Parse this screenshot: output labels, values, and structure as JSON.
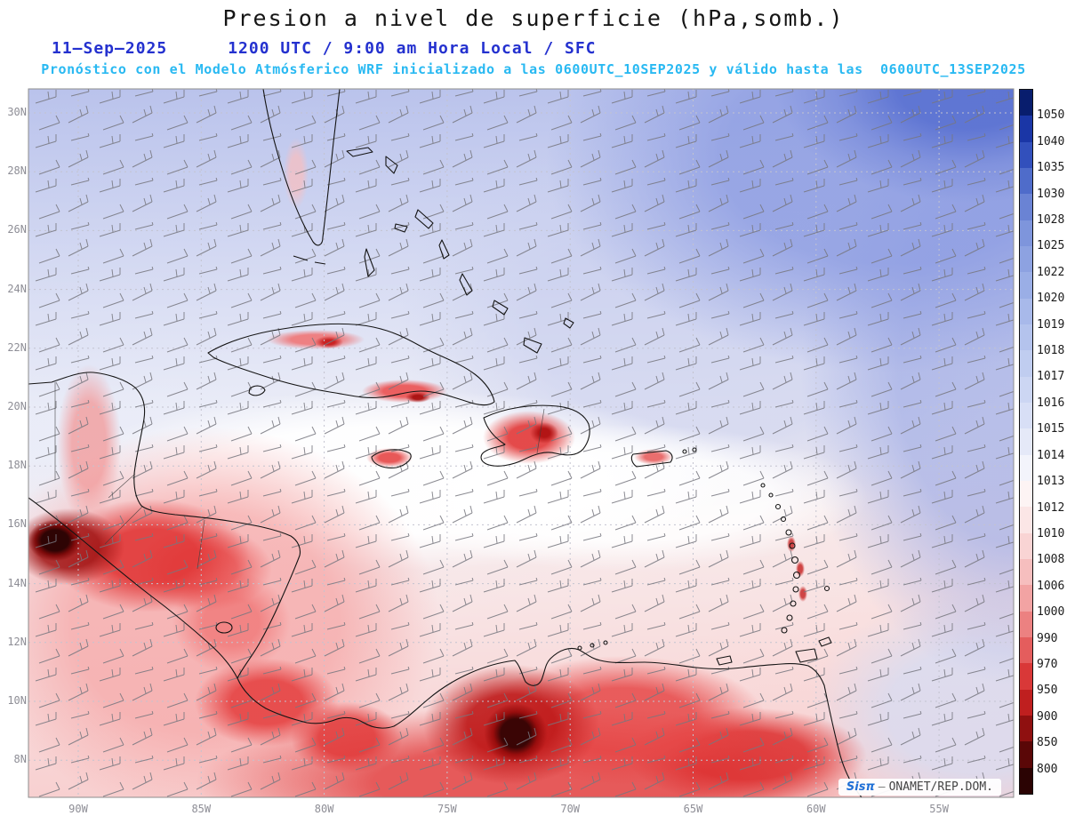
{
  "header": {
    "title": "Presion a nivel de superficie (hPa,somb.)",
    "date": "11–Sep–2025",
    "time_line": "1200 UTC / 9:00 am Hora Local / SFC",
    "forecast_line": "Pronóstico con el Modelo Atmósferico WRF inicializado a las 0600UTC_10SEP2025 y válido hasta las  0600UTC_13SEP2025"
  },
  "colors": {
    "title_text": "#151515",
    "datetime_text": "#2431cf",
    "forecast_text": "#29b9f2",
    "watermark_brand": "#1f6fd6",
    "axis_labels": "#8e8e96",
    "high_pressure_blue": "#5c73d2",
    "low_pressure_red": "#c01c1c"
  },
  "map": {
    "lat_labels": [
      "30N",
      "28N",
      "26N",
      "24N",
      "22N",
      "20N",
      "18N",
      "16N",
      "14N",
      "12N",
      "10N",
      "8N"
    ],
    "lon_labels": [
      "90W",
      "85W",
      "80W",
      "75W",
      "70W",
      "65W",
      "60W",
      "55W"
    ]
  },
  "colorbar": {
    "units": "hPa",
    "tick_labels": [
      "1050",
      "1040",
      "1035",
      "1030",
      "1028",
      "1025",
      "1022",
      "1020",
      "1019",
      "1018",
      "1017",
      "1016",
      "1015",
      "1014",
      "1013",
      "1012",
      "1010",
      "1008",
      "1006",
      "1000",
      "990",
      "970",
      "950",
      "900",
      "850",
      "800"
    ],
    "segment_colors": [
      "#081d6d",
      "#1a36a6",
      "#3250bc",
      "#4f6cca",
      "#6a83d4",
      "#7e95dc",
      "#8da2e1",
      "#9aaee6",
      "#a8b9ea",
      "#b4c3ed",
      "#c0cdf0",
      "#ccd6f3",
      "#d8dff6",
      "#e5e9f8",
      "#f3f4fb",
      "#fdf4f4",
      "#fbe6e6",
      "#f9d4d4",
      "#f6bebe",
      "#f2a3a3",
      "#ec8181",
      "#e45d5d",
      "#d93838",
      "#bf1f1f",
      "#8f1010",
      "#5a0707",
      "#2b0303"
    ]
  },
  "watermark": {
    "brand": "Sisπ",
    "sep": "—",
    "source": "ONAMET/REP.DOM."
  },
  "chart_data": {
    "type": "heatmap",
    "title": "Presion a nivel de superficie (hPa,somb.)",
    "x_tick_labels": [
      "90W",
      "85W",
      "80W",
      "75W",
      "70W",
      "65W",
      "60W",
      "55W"
    ],
    "y_tick_labels": [
      "30N",
      "28N",
      "26N",
      "24N",
      "22N",
      "20N",
      "18N",
      "16N",
      "14N",
      "12N",
      "10N",
      "8N"
    ],
    "colorbar_levels_hPa": [
      1050,
      1040,
      1035,
      1030,
      1028,
      1025,
      1022,
      1020,
      1019,
      1018,
      1017,
      1016,
      1015,
      1014,
      1013,
      1012,
      1010,
      1008,
      1006,
      1000,
      990,
      970,
      950,
      900,
      850,
      800
    ],
    "legend_position": "right",
    "overlays": [
      "wind-barbs",
      "coastlines",
      "lat-lon-dotted-grid"
    ],
    "field_pattern": [
      {
        "region": "northeast Atlantic (upper-right corner)",
        "shading": "dark blue",
        "approx_pressure_hPa": "1020-1025"
      },
      {
        "region": "Bahamas / north of Greater Antilles",
        "shading": "light blue-lavender",
        "approx_pressure_hPa": "1016-1019"
      },
      {
        "region": "central Caribbean band 16N-19N",
        "shading": "white",
        "approx_pressure_hPa": "1013-1015"
      },
      {
        "region": "Cuba / Hispaniola / Jamaica / Puerto Rico interiors",
        "shading": "red spots",
        "approx_pressure_hPa": "1008-1012"
      },
      {
        "region": "Central America (Guatemala-Honduras-Nicaragua)",
        "shading": "red with dark cores",
        "approx_pressure_hPa": "below 1006"
      },
      {
        "region": "Colombia / Venezuela (bottom of map)",
        "shading": "deep red, darkest cores",
        "approx_pressure_hPa": "below 1000"
      }
    ]
  }
}
